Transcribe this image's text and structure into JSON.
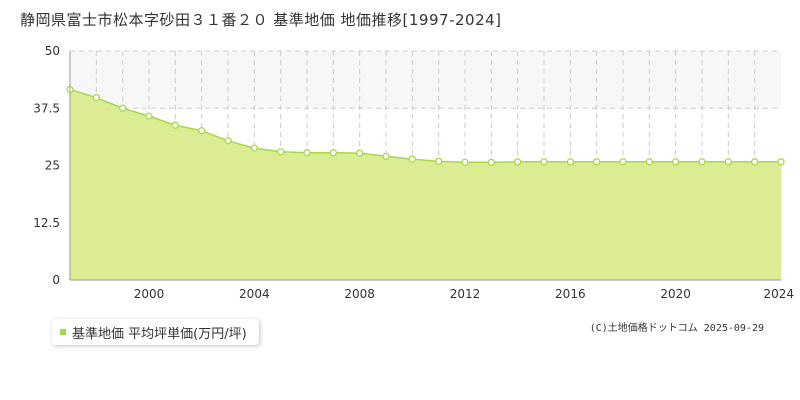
{
  "title": "静岡県富士市松本字砂田３１番２０ 基準地価 地価推移[1997-2024]",
  "legend": {
    "label": "基準地価 平均坪単価(万円/坪)"
  },
  "copyright": "(C)土地価格ドットコム 2025-09-29",
  "colors": {
    "line": "#a8d84a",
    "fill": "#dcec92",
    "grid": "#cccccc",
    "band": "#f7f7f7"
  },
  "chart_data": {
    "type": "area",
    "x": [
      1997,
      1998,
      1999,
      2000,
      2001,
      2002,
      2003,
      2004,
      2005,
      2006,
      2007,
      2008,
      2009,
      2010,
      2011,
      2012,
      2013,
      2014,
      2015,
      2016,
      2017,
      2018,
      2019,
      2020,
      2021,
      2022,
      2023,
      2024
    ],
    "series": [
      {
        "values": [
          41.6,
          39.8,
          37.5,
          35.8,
          33.8,
          32.6,
          30.4,
          28.8,
          28.0,
          27.8,
          27.8,
          27.7,
          27.0,
          26.4,
          25.9,
          25.7,
          25.7,
          25.8,
          25.8,
          25.8,
          25.8,
          25.8,
          25.8,
          25.8,
          25.8,
          25.8,
          25.8,
          25.8
        ]
      }
    ],
    "xlim": [
      1997,
      2024
    ],
    "ylim": [
      0,
      50
    ],
    "yticks": [
      0,
      12.5,
      25,
      37.5,
      50
    ],
    "yticklabels": [
      "0",
      "12.5",
      "25",
      "37.5",
      "50"
    ],
    "xticks": [
      2000,
      2004,
      2008,
      2012,
      2016,
      2020,
      2024
    ],
    "xticklabels": [
      "2000",
      "2004",
      "2008",
      "2012",
      "2016",
      "2020",
      "2024"
    ],
    "grid": true
  }
}
